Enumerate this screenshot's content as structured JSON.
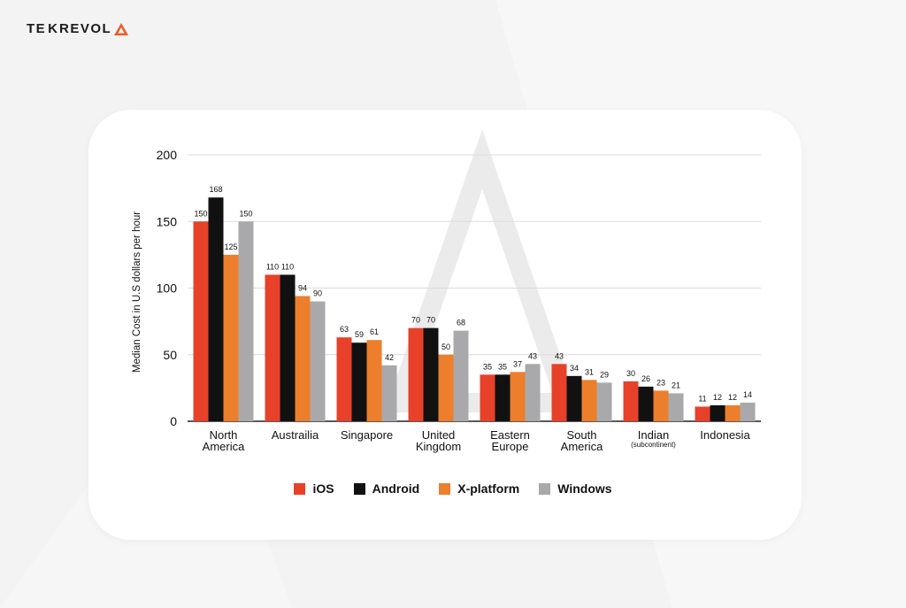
{
  "brand": {
    "name_left": "TE",
    "name_right": "REVOL",
    "k_glyph": "K"
  },
  "colors": {
    "ios": "#e8412a",
    "android": "#111111",
    "xplatform": "#ec7e2c",
    "windows": "#a9a9ab",
    "grid": "#dcdcdc",
    "accent": "#f15a24"
  },
  "chart_data": {
    "type": "bar",
    "ylabel": "Median Cost in U.S dollars per hour",
    "ylim": [
      0,
      200
    ],
    "yticks": [
      0,
      50,
      100,
      150,
      200
    ],
    "categories": [
      {
        "line1": "North",
        "line2": "America",
        "sub": ""
      },
      {
        "line1": "Austrailia",
        "line2": "",
        "sub": ""
      },
      {
        "line1": "Singapore",
        "line2": "",
        "sub": ""
      },
      {
        "line1": "United",
        "line2": "Kingdom",
        "sub": ""
      },
      {
        "line1": "Eastern",
        "line2": "Europe",
        "sub": ""
      },
      {
        "line1": "South",
        "line2": "America",
        "sub": ""
      },
      {
        "line1": "Indian",
        "line2": "",
        "sub": "(subcontinent)"
      },
      {
        "line1": "Indonesia",
        "line2": "",
        "sub": ""
      }
    ],
    "series": [
      {
        "name": "iOS",
        "key": "ios",
        "values": [
          150,
          110,
          63,
          70,
          35,
          43,
          30,
          11
        ]
      },
      {
        "name": "Android",
        "key": "android",
        "values": [
          168,
          110,
          59,
          70,
          35,
          34,
          26,
          12
        ]
      },
      {
        "name": "X-platform",
        "key": "xplatform",
        "values": [
          125,
          94,
          61,
          50,
          37,
          31,
          23,
          12
        ]
      },
      {
        "name": "Windows",
        "key": "windows",
        "values": [
          150,
          90,
          42,
          68,
          43,
          29,
          21,
          14
        ]
      }
    ]
  }
}
